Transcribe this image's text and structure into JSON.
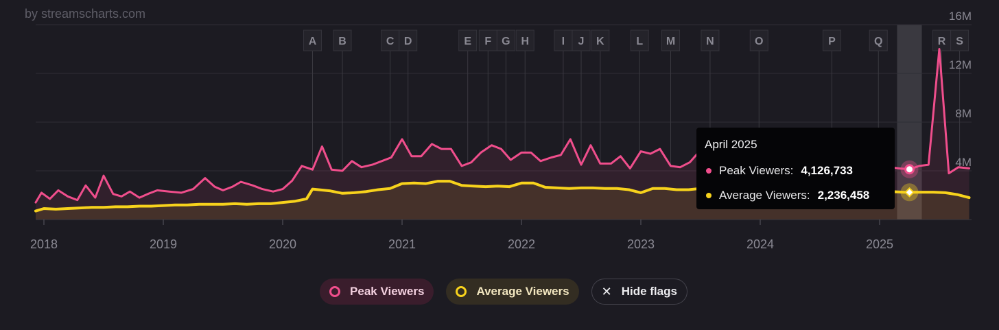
{
  "attribution": "by streamscharts.com",
  "colors": {
    "peak": "#f04e8c",
    "average": "#f7d21c",
    "background": "#1c1b22",
    "grid": "#2f2e36"
  },
  "tooltip": {
    "title": "April 2025",
    "peak_label": "Peak Viewers:",
    "peak_value": "4,126,733",
    "avg_label": "Average Viewers:",
    "avg_value": "2,236,458"
  },
  "legend": {
    "peak_label": "Peak Viewers",
    "avg_label": "Average Viewers",
    "flags_label": "Hide flags"
  },
  "chart_data": {
    "type": "line",
    "title": "",
    "xlabel": "",
    "ylabel": "",
    "ylim": [
      0,
      16000000
    ],
    "y_ticks": [
      "16M",
      "12M",
      "8M",
      "4M"
    ],
    "y_tick_values": [
      16000000,
      12000000,
      8000000,
      4000000
    ],
    "x_ticks": [
      "2018",
      "2019",
      "2020",
      "2021",
      "2022",
      "2023",
      "2024",
      "2025"
    ],
    "x_tick_values": [
      2018.0,
      2019.0,
      2020.0,
      2021.0,
      2022.0,
      2023.0,
      2024.0,
      2025.0
    ],
    "x_range": [
      2017.9,
      2025.75
    ],
    "highlight": {
      "label": "April 2025",
      "x": 2025.25,
      "peak": 4126733,
      "average": 2236458
    },
    "flags": [
      {
        "label": "A",
        "x": 2020.25
      },
      {
        "label": "B",
        "x": 2020.5
      },
      {
        "label": "C",
        "x": 2020.9
      },
      {
        "label": "D",
        "x": 2021.05
      },
      {
        "label": "E",
        "x": 2021.55
      },
      {
        "label": "F",
        "x": 2021.72
      },
      {
        "label": "G",
        "x": 2021.87
      },
      {
        "label": "H",
        "x": 2022.03
      },
      {
        "label": "I",
        "x": 2022.35
      },
      {
        "label": "J",
        "x": 2022.5
      },
      {
        "label": "K",
        "x": 2022.66
      },
      {
        "label": "L",
        "x": 2022.99
      },
      {
        "label": "M",
        "x": 2023.25
      },
      {
        "label": "N",
        "x": 2023.58
      },
      {
        "label": "O",
        "x": 2023.99
      },
      {
        "label": "P",
        "x": 2024.6
      },
      {
        "label": "Q",
        "x": 2024.99
      },
      {
        "label": "R",
        "x": 2025.52
      },
      {
        "label": "S",
        "x": 2025.67
      }
    ],
    "series": [
      {
        "name": "Peak Viewers",
        "x": [
          2017.9,
          2017.98,
          2018.05,
          2018.12,
          2018.2,
          2018.28,
          2018.35,
          2018.43,
          2018.5,
          2018.58,
          2018.65,
          2018.72,
          2018.8,
          2018.87,
          2018.95,
          2019.05,
          2019.15,
          2019.25,
          2019.35,
          2019.43,
          2019.5,
          2019.58,
          2019.65,
          2019.75,
          2019.83,
          2019.92,
          2020.0,
          2020.08,
          2020.16,
          2020.25,
          2020.33,
          2020.41,
          2020.5,
          2020.58,
          2020.66,
          2020.75,
          2020.83,
          2020.91,
          2021.0,
          2021.08,
          2021.16,
          2021.25,
          2021.33,
          2021.41,
          2021.5,
          2021.58,
          2021.66,
          2021.75,
          2021.83,
          2021.91,
          2022.0,
          2022.08,
          2022.16,
          2022.25,
          2022.33,
          2022.41,
          2022.5,
          2022.58,
          2022.66,
          2022.75,
          2022.83,
          2022.91,
          2023.0,
          2023.08,
          2023.16,
          2023.25,
          2023.33,
          2023.41,
          2023.5,
          2023.58,
          2023.66,
          2023.75,
          2023.83,
          2023.91,
          2024.0,
          2024.08,
          2024.16,
          2024.25,
          2024.33,
          2024.41,
          2024.5,
          2024.58,
          2024.66,
          2024.75,
          2024.83,
          2024.91,
          2025.0,
          2025.08,
          2025.16,
          2025.25,
          2025.33,
          2025.41,
          2025.5,
          2025.58,
          2025.66,
          2025.75
        ],
        "values": [
          1400000,
          2200000,
          1700000,
          2400000,
          1900000,
          1600000,
          2800000,
          1800000,
          3600000,
          2100000,
          1900000,
          2300000,
          1800000,
          2100000,
          2400000,
          2300000,
          2200000,
          2500000,
          3400000,
          2700000,
          2400000,
          2700000,
          3100000,
          2800000,
          2500000,
          2300000,
          2500000,
          3200000,
          4400000,
          4100000,
          6000000,
          4100000,
          4000000,
          4800000,
          4300000,
          4500000,
          4800000,
          5100000,
          6600000,
          5200000,
          5200000,
          6200000,
          5800000,
          5800000,
          4400000,
          4700000,
          5500000,
          6100000,
          5800000,
          4900000,
          5500000,
          5500000,
          4800000,
          5100000,
          5300000,
          6600000,
          4500000,
          6100000,
          4600000,
          4600000,
          5200000,
          4200000,
          5600000,
          5400000,
          5800000,
          4400000,
          4300000,
          4700000,
          5700000,
          4900000,
          5200000,
          4400000,
          5000000,
          4700000,
          4900000,
          4900000,
          5000000,
          4700000,
          4900000,
          4600000,
          5300000,
          4700000,
          4900000,
          5800000,
          4900000,
          4700000,
          4600000,
          4300000,
          4200000,
          4126733,
          4400000,
          4500000,
          14000000,
          3800000,
          4300000,
          4200000
        ]
      },
      {
        "name": "Average Viewers",
        "x": [
          2017.9,
          2018.0,
          2018.1,
          2018.2,
          2018.3,
          2018.4,
          2018.5,
          2018.6,
          2018.7,
          2018.8,
          2018.9,
          2019.0,
          2019.1,
          2019.2,
          2019.3,
          2019.4,
          2019.5,
          2019.6,
          2019.7,
          2019.8,
          2019.9,
          2020.0,
          2020.1,
          2020.2,
          2020.25,
          2020.4,
          2020.5,
          2020.6,
          2020.7,
          2020.8,
          2020.9,
          2021.0,
          2021.1,
          2021.2,
          2021.3,
          2021.4,
          2021.5,
          2021.6,
          2021.7,
          2021.8,
          2021.9,
          2022.0,
          2022.1,
          2022.2,
          2022.3,
          2022.4,
          2022.5,
          2022.6,
          2022.7,
          2022.8,
          2022.9,
          2023.0,
          2023.1,
          2023.2,
          2023.3,
          2023.4,
          2023.5,
          2023.6,
          2023.7,
          2023.8,
          2023.9,
          2024.0,
          2024.1,
          2024.2,
          2024.3,
          2024.4,
          2024.5,
          2024.6,
          2024.7,
          2024.8,
          2024.9,
          2025.0,
          2025.1,
          2025.2,
          2025.25,
          2025.35,
          2025.45,
          2025.55,
          2025.65,
          2025.75
        ],
        "values": [
          700000,
          900000,
          850000,
          900000,
          950000,
          1000000,
          1000000,
          1050000,
          1050000,
          1100000,
          1100000,
          1150000,
          1200000,
          1200000,
          1250000,
          1250000,
          1250000,
          1300000,
          1250000,
          1300000,
          1300000,
          1400000,
          1500000,
          1700000,
          2500000,
          2350000,
          2150000,
          2200000,
          2300000,
          2450000,
          2550000,
          2950000,
          3000000,
          2950000,
          3150000,
          3150000,
          2800000,
          2750000,
          2700000,
          2750000,
          2700000,
          3000000,
          3000000,
          2650000,
          2600000,
          2550000,
          2600000,
          2600000,
          2550000,
          2550000,
          2450000,
          2200000,
          2550000,
          2550000,
          2450000,
          2450000,
          2550000,
          2600000,
          2500000,
          2500000,
          2500000,
          2450000,
          2450000,
          2400000,
          2350000,
          2350000,
          2450000,
          2350000,
          2400000,
          2350000,
          2350000,
          2350000,
          2300000,
          2250000,
          2236458,
          2250000,
          2250000,
          2200000,
          2050000,
          1800000
        ]
      }
    ]
  }
}
